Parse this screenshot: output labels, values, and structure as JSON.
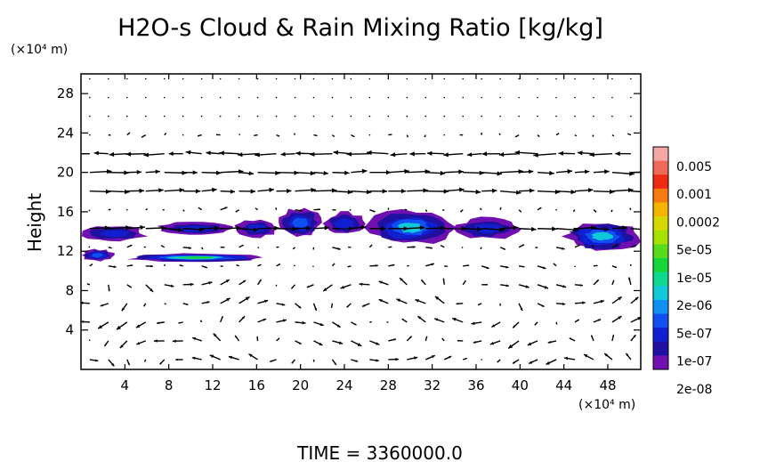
{
  "chart_data": {
    "type": "heatmap",
    "title": "H2O-s Cloud & Rain Mixing Ratio [kg/kg]",
    "ylabel": "Height",
    "y_unit": "(×10⁴ m)",
    "x_unit": "(×10⁴ m)",
    "xlim": [
      0,
      51
    ],
    "ylim": [
      0,
      30
    ],
    "x_ticks": [
      "4",
      "8",
      "12",
      "16",
      "20",
      "24",
      "28",
      "32",
      "36",
      "40",
      "44",
      "48"
    ],
    "y_ticks": [
      "4",
      "8",
      "12",
      "16",
      "20",
      "24",
      "28"
    ],
    "colorbar": {
      "labels": [
        "0.005",
        "0.001",
        "0.0002",
        "5e-05",
        "1e-05",
        "2e-06",
        "5e-07",
        "1e-07",
        "2e-08"
      ],
      "colors": [
        "#f4a6a6",
        "#f06a5a",
        "#ee2a10",
        "#f57a10",
        "#f4b400",
        "#d4d800",
        "#a6e000",
        "#56dc1c",
        "#16d63a",
        "#10d890",
        "#10c8d8",
        "#1090f0",
        "#1050f0",
        "#1020d0",
        "#2010a0",
        "#7010b0"
      ]
    },
    "cloud_regions": [
      {
        "x": [
          0,
          6
        ],
        "y": [
          13.0,
          14.6
        ],
        "level": "1e-07"
      },
      {
        "x": [
          7,
          14
        ],
        "y": [
          13.6,
          15.0
        ],
        "level": "1e-07"
      },
      {
        "x": [
          0,
          3
        ],
        "y": [
          11.0,
          12.2
        ],
        "level": "2e-06"
      },
      {
        "x": [
          4,
          17
        ],
        "y": [
          10.9,
          11.8
        ],
        "level": "5e-05"
      },
      {
        "x": [
          14,
          18
        ],
        "y": [
          13.4,
          15.2
        ],
        "level": "1e-07"
      },
      {
        "x": [
          18,
          22
        ],
        "y": [
          13.4,
          16.4
        ],
        "level": "2e-06"
      },
      {
        "x": [
          22,
          26
        ],
        "y": [
          13.6,
          16.0
        ],
        "level": "5e-07"
      },
      {
        "x": [
          26,
          34
        ],
        "y": [
          12.6,
          16.2
        ],
        "level": "1e-05"
      },
      {
        "x": [
          34,
          40
        ],
        "y": [
          13.2,
          15.4
        ],
        "level": "1e-07"
      },
      {
        "x": [
          44,
          51
        ],
        "y": [
          12.0,
          15.0
        ],
        "level": "1e-05"
      }
    ],
    "wind_bands": [
      {
        "height": 21,
        "direction": "west"
      },
      {
        "height": 19,
        "direction": "east"
      },
      {
        "height": 15,
        "direction": "east"
      }
    ]
  },
  "footer": {
    "time_label": "TIME  =  3360000.0"
  }
}
